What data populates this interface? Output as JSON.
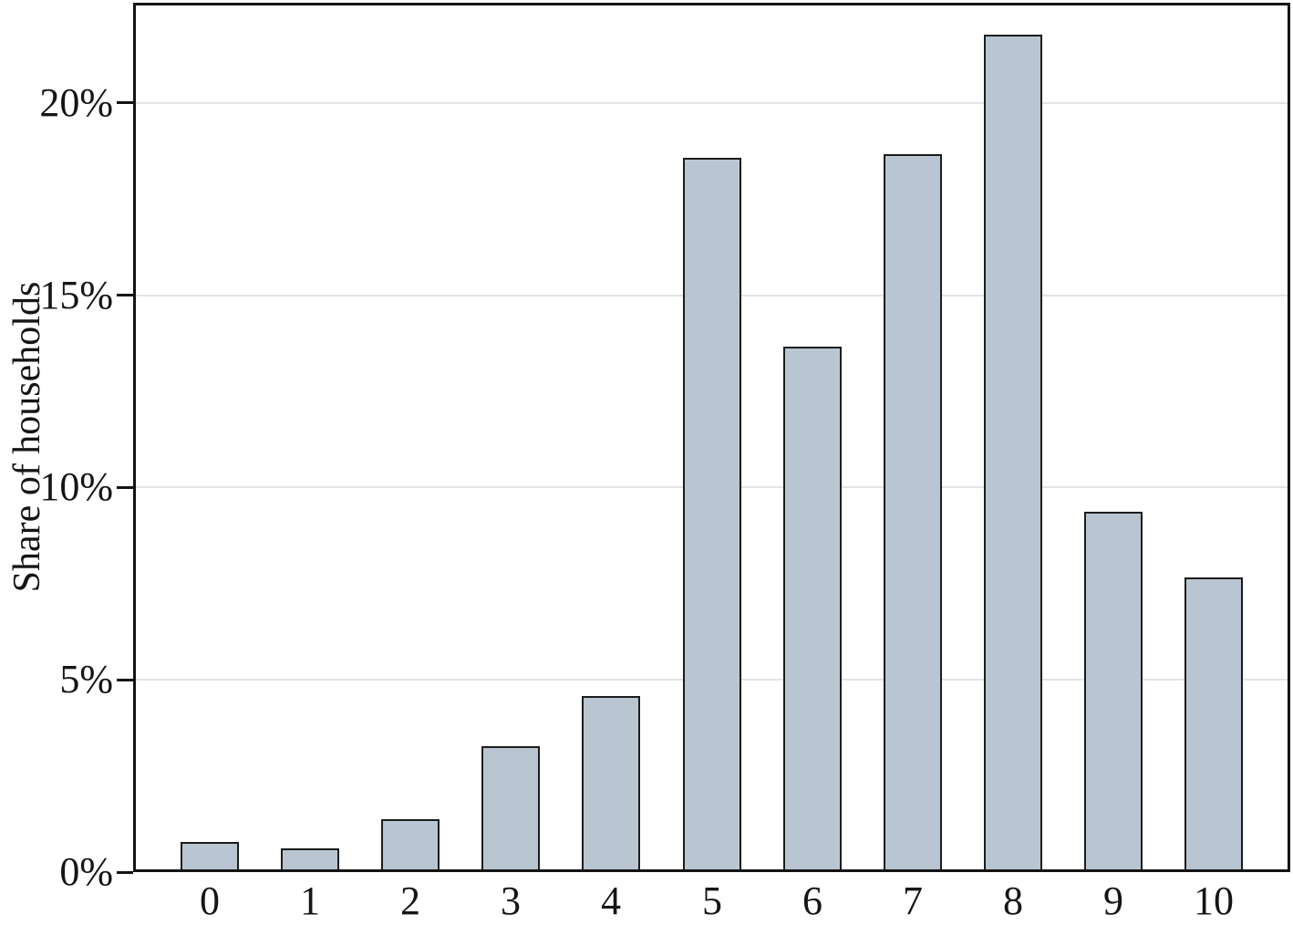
{
  "chart_data": {
    "type": "bar",
    "title": "",
    "xlabel": "",
    "ylabel": "Share of households",
    "categories": [
      "0",
      "1",
      "2",
      "3",
      "4",
      "5",
      "6",
      "7",
      "8",
      "9",
      "10"
    ],
    "values": [
      0.7,
      0.55,
      1.3,
      3.2,
      4.5,
      18.5,
      13.6,
      18.6,
      21.7,
      9.3,
      7.6
    ],
    "y_ticks": [
      {
        "value": 0,
        "label": "0%"
      },
      {
        "value": 5,
        "label": "5%"
      },
      {
        "value": 10,
        "label": "10%"
      },
      {
        "value": 15,
        "label": "15%"
      },
      {
        "value": 20,
        "label": "20%"
      }
    ],
    "ylim": [
      0,
      22.6
    ],
    "grid": "horizontal",
    "legend": "none",
    "colors": {
      "bar_fill": "#b9c6d1",
      "bar_border": "#1c1c1c",
      "gridline": "#e4e4e4",
      "frame": "#141414",
      "text": "#151515",
      "background": "#ffffff"
    }
  }
}
